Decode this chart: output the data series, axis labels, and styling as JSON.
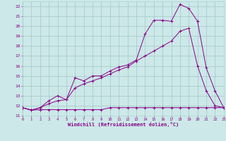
{
  "xlabel": "Windchill (Refroidissement éolien,°C)",
  "background_color": "#cce8e8",
  "grid_color": "#aacccc",
  "line_color": "#880088",
  "xlim": [
    0,
    23
  ],
  "ylim": [
    11,
    22.5
  ],
  "yticks": [
    11,
    12,
    13,
    14,
    15,
    16,
    17,
    18,
    19,
    20,
    21,
    22
  ],
  "xticks": [
    0,
    1,
    2,
    3,
    4,
    5,
    6,
    7,
    8,
    9,
    10,
    11,
    12,
    13,
    14,
    15,
    16,
    17,
    18,
    19,
    20,
    21,
    22,
    23
  ],
  "line1_x": [
    0,
    1,
    2,
    3,
    4,
    5,
    6,
    7,
    8,
    9,
    10,
    11,
    12,
    13,
    14,
    15,
    16,
    17,
    18,
    19,
    20,
    21,
    22,
    23
  ],
  "line1_y": [
    11.8,
    11.55,
    11.6,
    11.6,
    11.6,
    11.6,
    11.6,
    11.6,
    11.6,
    11.6,
    11.8,
    11.8,
    11.8,
    11.8,
    11.8,
    11.8,
    11.8,
    11.8,
    11.8,
    11.8,
    11.8,
    11.8,
    11.8,
    11.8
  ],
  "line2_x": [
    0,
    1,
    2,
    3,
    4,
    5,
    6,
    7,
    8,
    9,
    10,
    11,
    12,
    13,
    14,
    15,
    16,
    17,
    18,
    19,
    20,
    21,
    22,
    23
  ],
  "line2_y": [
    11.8,
    11.55,
    11.8,
    12.2,
    12.5,
    12.6,
    13.8,
    14.2,
    14.5,
    14.8,
    15.2,
    15.6,
    15.9,
    16.5,
    17.0,
    17.5,
    18.0,
    18.5,
    19.5,
    19.8,
    16.0,
    13.5,
    12.0,
    11.8
  ],
  "line3_x": [
    0,
    1,
    2,
    3,
    4,
    5,
    6,
    7,
    8,
    9,
    10,
    11,
    12,
    13,
    14,
    15,
    16,
    17,
    18,
    19,
    20,
    21,
    22,
    23
  ],
  "line3_y": [
    11.8,
    11.55,
    11.8,
    12.5,
    13.0,
    12.6,
    14.8,
    14.5,
    15.0,
    15.0,
    15.5,
    15.9,
    16.1,
    16.6,
    19.2,
    20.6,
    20.6,
    20.5,
    22.2,
    21.8,
    20.5,
    15.8,
    13.5,
    11.8
  ]
}
